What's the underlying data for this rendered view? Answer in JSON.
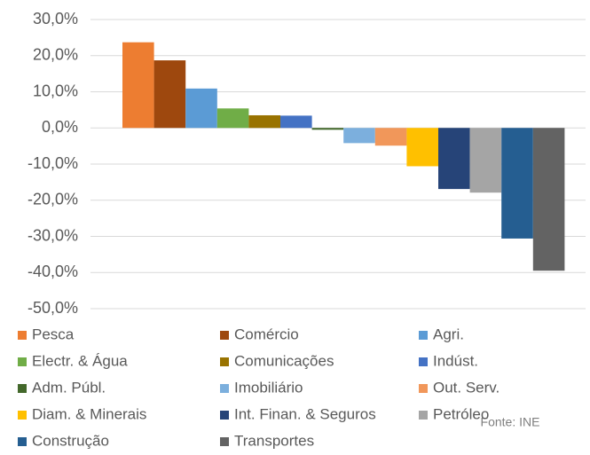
{
  "chart_data": {
    "type": "bar",
    "ylim": [
      -50,
      30
    ],
    "yticks": [
      {
        "value": 30,
        "label": "30,0%"
      },
      {
        "value": 20,
        "label": "20,0%"
      },
      {
        "value": 10,
        "label": "10,0%"
      },
      {
        "value": 0,
        "label": "0,0%"
      },
      {
        "value": -10,
        "label": "-10,0%"
      },
      {
        "value": -20,
        "label": "-20,0%"
      },
      {
        "value": -30,
        "label": "-30,0%"
      },
      {
        "value": -40,
        "label": "-40,0%"
      },
      {
        "value": -50,
        "label": "-50,0%"
      }
    ],
    "grid": true,
    "series": [
      {
        "name": "Pesca",
        "color": "#ed7d31",
        "values": [
          23.7
        ]
      },
      {
        "name": "Comércio",
        "color": "#9e480e",
        "values": [
          18.7
        ]
      },
      {
        "name": "Agri.",
        "color": "#5b9bd5",
        "values": [
          10.9
        ]
      },
      {
        "name": "Electr. & Água",
        "color": "#70ad47",
        "values": [
          5.4
        ]
      },
      {
        "name": "Comunicações",
        "color": "#997300",
        "values": [
          3.5
        ]
      },
      {
        "name": "Indúst.",
        "color": "#4472c4",
        "values": [
          3.4
        ]
      },
      {
        "name": "Adm. Públ.",
        "color": "#43682b",
        "values": [
          -0.5
        ]
      },
      {
        "name": "Imobiliário",
        "color": "#7cafdd",
        "values": [
          -4.2
        ]
      },
      {
        "name": "Out. Serv.",
        "color": "#f1975a",
        "values": [
          -4.9
        ]
      },
      {
        "name": "Diam. & Minerais",
        "color": "#ffc000",
        "values": [
          -10.6
        ]
      },
      {
        "name": "Int. Finan. & Seguros",
        "color": "#264478",
        "values": [
          -16.9
        ]
      },
      {
        "name": "Petróleo",
        "color": "#a5a5a5",
        "values": [
          -17.9
        ]
      },
      {
        "name": "Construção",
        "color": "#255e91",
        "values": [
          -30.6
        ]
      },
      {
        "name": "Transportes",
        "color": "#636363",
        "values": [
          -39.5
        ]
      }
    ],
    "annotation": "Fonte: INE"
  }
}
